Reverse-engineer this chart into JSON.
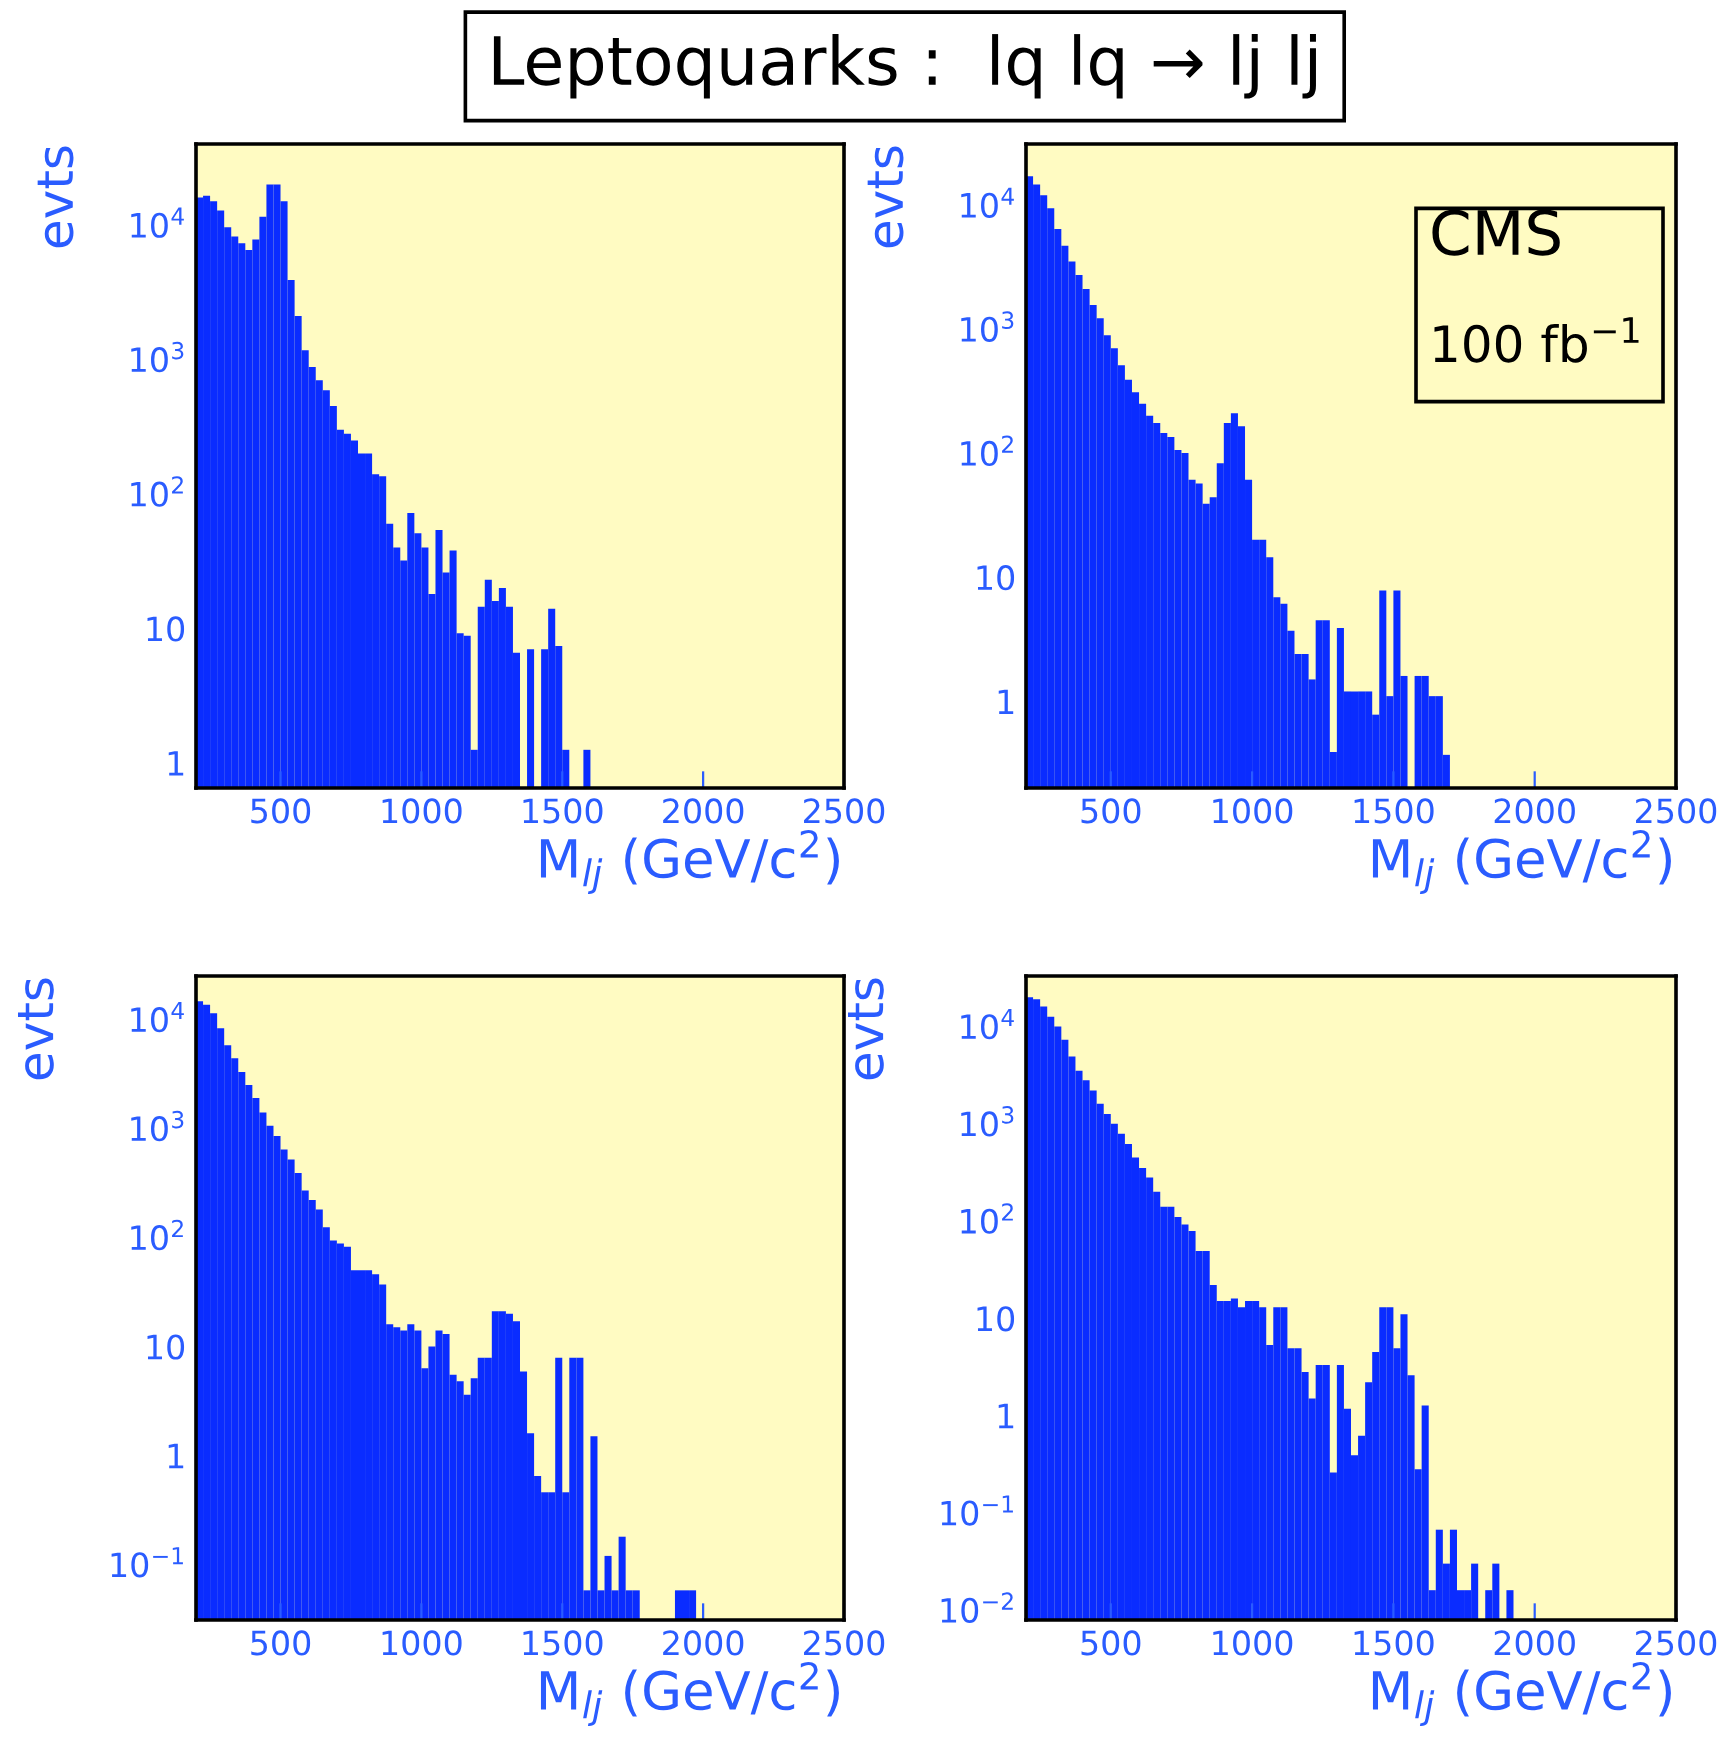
{
  "chart_data": [
    {
      "type": "histogram",
      "title": "Leptoquarks :  lq lq → lj lj",
      "xlabel": "M$_{lj}$ (GeV/c$^{2}$)",
      "ylabel": "evts",
      "color": "#0a2cff",
      "log": true,
      "xlim": [
        200,
        2500
      ],
      "xticks": [
        500,
        1000,
        1500,
        2000,
        2500
      ],
      "ylim": [
        0.65,
        40000
      ],
      "yticks": [
        1,
        10,
        {
          "value": 100,
          "label": "10$^{2}$"
        },
        {
          "value": 1000,
          "label": "10$^{3}$"
        },
        {
          "value": 10000,
          "label": "10$^{4}$"
        }
      ],
      "bins": [
        200,
        225,
        250,
        275,
        300,
        325,
        350,
        375,
        400,
        425,
        450,
        475,
        500,
        525,
        550,
        575,
        600,
        625,
        650,
        675,
        700,
        725,
        750,
        775,
        800,
        825,
        850,
        875,
        900,
        925,
        950,
        975,
        1000,
        1025,
        1050,
        1075,
        1100,
        1125,
        1150,
        1175,
        1200,
        1225,
        1250,
        1275,
        1300,
        1325,
        1350,
        1375,
        1400,
        1425,
        1450,
        1475,
        1500,
        1525,
        1550,
        1575,
        1600
      ],
      "values": [
        16000,
        16500,
        15000,
        12800,
        9600,
        8200,
        7300,
        6500,
        7800,
        11500,
        20000,
        20000,
        15000,
        3900,
        2100,
        1170,
        880,
        700,
        590,
        450,
        300,
        280,
        250,
        200,
        200,
        140,
        135,
        60,
        40,
        32,
        72,
        51,
        40,
        18,
        54,
        26,
        38,
        9.2,
        8.8,
        1.25,
        14.5,
        23,
        16,
        20,
        14.5,
        6.6,
        null,
        7,
        null,
        7,
        14,
        7.4,
        1.25,
        null,
        null,
        1.25
      ]
    },
    {
      "type": "histogram",
      "xlabel": "M$_{lj}$ (GeV/c$^{2}$)",
      "ylabel": "evts",
      "color": "#0a2cff",
      "log": true,
      "xlim": [
        200,
        2500
      ],
      "xticks": [
        500,
        1000,
        1500,
        2000,
        2500
      ],
      "ylim": [
        0.2,
        31000
      ],
      "yticks": [
        1,
        10,
        {
          "value": 100,
          "label": "10$^{2}$"
        },
        {
          "value": 1000,
          "label": "10$^{3}$"
        },
        {
          "value": 10000,
          "label": "10$^{4}$"
        }
      ],
      "annotations": [
        "CMS",
        "100 fb$^{−1}$"
      ],
      "bins": [
        200,
        225,
        250,
        275,
        300,
        325,
        350,
        375,
        400,
        425,
        450,
        475,
        500,
        525,
        550,
        575,
        600,
        625,
        650,
        675,
        700,
        725,
        750,
        775,
        800,
        825,
        850,
        875,
        900,
        925,
        950,
        975,
        1000,
        1025,
        1050,
        1075,
        1100,
        1125,
        1150,
        1175,
        1200,
        1225,
        1250,
        1275,
        1300,
        1325,
        1350,
        1375,
        1400,
        1425,
        1450,
        1475,
        1500,
        1525,
        1550,
        1575,
        1600,
        1625,
        1650,
        1675,
        1700
      ],
      "values": [
        17000,
        14600,
        12000,
        9400,
        6400,
        4700,
        3500,
        2730,
        2100,
        1560,
        1220,
        890,
        700,
        510,
        390,
        310,
        250,
        200,
        175,
        145,
        135,
        106,
        100,
        61,
        57,
        39,
        44,
        83,
        175,
        210,
        165,
        61,
        20,
        20,
        14.5,
        6.9,
        6.1,
        3.7,
        2.4,
        2.4,
        1.5,
        4.5,
        4.5,
        0.39,
        3.9,
        1.2,
        1.2,
        1.2,
        1.2,
        0.78,
        7.8,
        1.1,
        7.8,
        1.6,
        null,
        1.6,
        1.6,
        1.1,
        1.1,
        0.37
      ]
    },
    {
      "type": "histogram",
      "xlabel": "M$_{lj}$ (GeV/c$^{2}$)",
      "ylabel": "evts",
      "color": "#0a2cff",
      "log": true,
      "xlim": [
        200,
        2500
      ],
      "xticks": [
        500,
        1000,
        1500,
        2000,
        2500
      ],
      "ylim": [
        0.031,
        25000
      ],
      "yticks": [
        {
          "value": 0.1,
          "label": "10$^{−1}$"
        },
        1,
        10,
        {
          "value": 100,
          "label": "10$^{2}$"
        },
        {
          "value": 1000,
          "label": "10$^{3}$"
        },
        {
          "value": 10000,
          "label": "10$^{4}$"
        }
      ],
      "bins": [
        200,
        225,
        250,
        275,
        300,
        325,
        350,
        375,
        400,
        425,
        450,
        475,
        500,
        525,
        550,
        575,
        600,
        625,
        650,
        675,
        700,
        725,
        750,
        775,
        800,
        825,
        850,
        875,
        900,
        925,
        950,
        975,
        1000,
        1025,
        1050,
        1075,
        1100,
        1125,
        1150,
        1175,
        1200,
        1225,
        1250,
        1275,
        1300,
        1325,
        1350,
        1375,
        1400,
        1425,
        1450,
        1475,
        1500,
        1525,
        1550,
        1575,
        1600,
        1625,
        1650,
        1675,
        1700,
        1725,
        1750,
        1775,
        1800,
        1825,
        1850,
        1875,
        1900,
        1925,
        1950,
        1975
      ],
      "values": [
        14700,
        13600,
        11400,
        8300,
        5800,
        4400,
        3300,
        2500,
        1900,
        1400,
        1060,
        850,
        640,
        520,
        390,
        270,
        220,
        180,
        124,
        94,
        88,
        82,
        50,
        50,
        50,
        46,
        37,
        16,
        15,
        14,
        16,
        14,
        6.3,
        10,
        14,
        13,
        5.5,
        4.8,
        3.6,
        5.1,
        7.9,
        7.9,
        21,
        21,
        20,
        17,
        5.9,
        1.6,
        0.65,
        0.46,
        0.46,
        7.9,
        0.46,
        7.9,
        7.9,
        0.058,
        1.5,
        0.058,
        0.12,
        0.058,
        0.18,
        0.058,
        0.058,
        null,
        null,
        null,
        null,
        null,
        0.058,
        0.058,
        0.058
      ]
    },
    {
      "type": "histogram",
      "xlabel": "M$_{lj}$ (GeV/c$^{2}$)",
      "ylabel": "evts",
      "color": "#0a2cff",
      "log": true,
      "xlim": [
        200,
        2500
      ],
      "xticks": [
        500,
        1000,
        1500,
        2000,
        2500
      ],
      "ylim": [
        0.0079,
        33000
      ],
      "yticks": [
        {
          "value": 0.01,
          "label": "10$^{−2}$"
        },
        {
          "value": 0.1,
          "label": "10$^{−1}$"
        },
        1,
        10,
        {
          "value": 100,
          "label": "10$^{2}$"
        },
        {
          "value": 1000,
          "label": "10$^{3}$"
        },
        {
          "value": 10000,
          "label": "10$^{4}$"
        }
      ],
      "bins": [
        200,
        225,
        250,
        275,
        300,
        325,
        350,
        375,
        400,
        425,
        450,
        475,
        500,
        525,
        550,
        575,
        600,
        625,
        650,
        675,
        700,
        725,
        750,
        775,
        800,
        825,
        850,
        875,
        900,
        925,
        950,
        975,
        1000,
        1025,
        1050,
        1075,
        1100,
        1125,
        1150,
        1175,
        1200,
        1225,
        1250,
        1275,
        1300,
        1325,
        1350,
        1375,
        1400,
        1425,
        1450,
        1475,
        1500,
        1525,
        1550,
        1575,
        1600,
        1625,
        1650,
        1675,
        1700,
        1725,
        1750,
        1775,
        1800,
        1825,
        1850,
        1875,
        1900,
        1925
      ],
      "values": [
        20000,
        19000,
        16000,
        12600,
        10000,
        7300,
        4900,
        3500,
        2800,
        2200,
        1600,
        1260,
        1000,
        790,
        620,
        450,
        350,
        280,
        200,
        140,
        140,
        110,
        92,
        79,
        49,
        49,
        22,
        15,
        15,
        16,
        13,
        15,
        15,
        13,
        5.3,
        13,
        13,
        4.9,
        4.9,
        2.8,
        1.5,
        3.3,
        3.3,
        0.26,
        3.3,
        1.17,
        0.39,
        0.62,
        2.2,
        4.5,
        13,
        13,
        4.9,
        11,
        2.6,
        0.28,
        1.27,
        0.016,
        0.067,
        0.03,
        0.067,
        0.016,
        0.016,
        0.03,
        null,
        0.016,
        0.03,
        null,
        0.016
      ]
    }
  ]
}
